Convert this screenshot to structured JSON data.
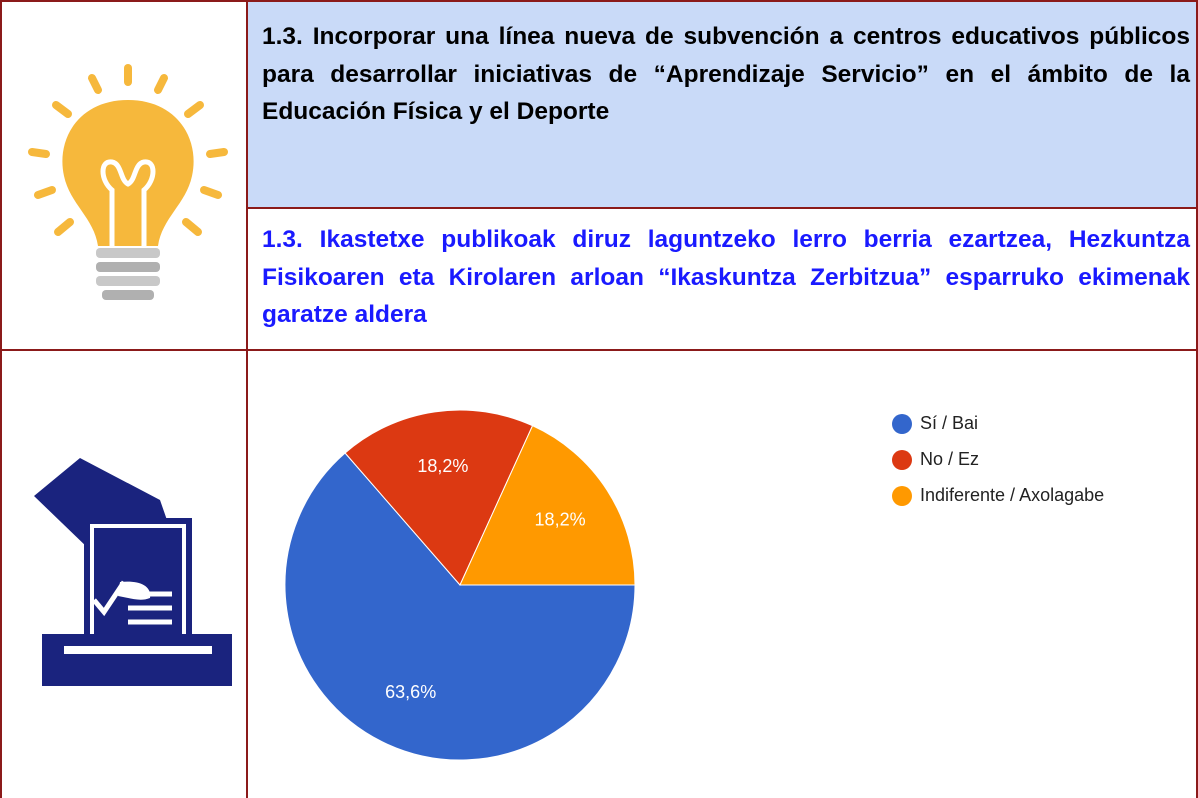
{
  "header": {
    "title_es": "1.3. Incorporar una línea nueva de subvención a centros educativos públicos para desarrollar iniciativas de “Aprendizaje Servicio” en el ámbito de la Educación Física y el Deporte",
    "title_eu": "1.3. Ikastetxe publikoak diruz laguntzeko lerro berria ezartzea, Hezkuntza Fisikoaren eta Kirolaren arloan “Ikaskuntza Zerbitzua” esparruko ekimenak garatze aldera"
  },
  "chart_data": {
    "type": "pie",
    "categories": [
      "Sí / Bai",
      "No / Ez",
      "Indiferente / Axolagabe"
    ],
    "values": [
      63.6,
      18.2,
      18.2
    ],
    "value_labels": [
      "63,6%",
      "18,2%",
      "18,2%"
    ],
    "colors": [
      "#3366cc",
      "#dc3912",
      "#ff9900"
    ],
    "legend": "top-right"
  }
}
